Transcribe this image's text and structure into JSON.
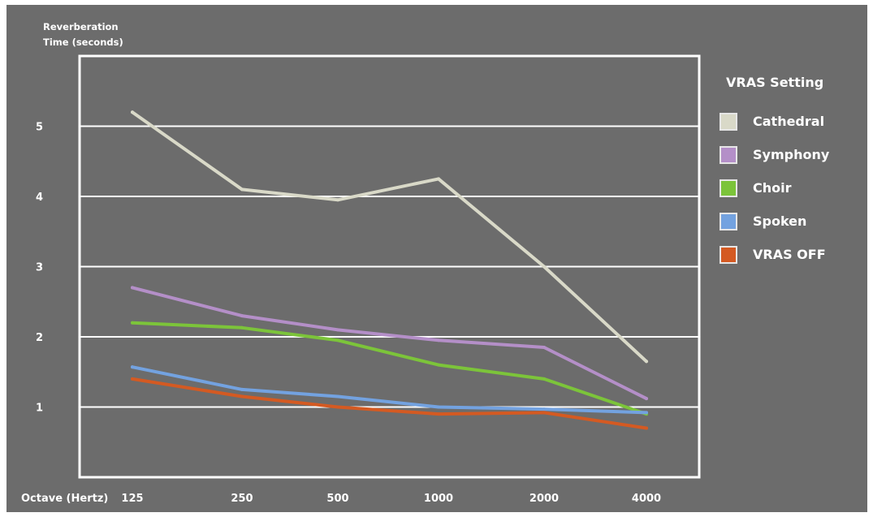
{
  "chart_data": {
    "type": "line",
    "ylabel_lines": [
      "Reverberation",
      "Time (seconds)"
    ],
    "xlabel": "Octave (Hertz)",
    "categories": [
      "125",
      "250",
      "500",
      "1000",
      "2000",
      "4000"
    ],
    "yticks": [
      "1",
      "2",
      "3",
      "4",
      "5"
    ],
    "ylim": [
      0,
      6
    ],
    "grid": true,
    "legend_title": "VRAS Setting",
    "legend_position": "right",
    "series": [
      {
        "name": "Cathedral",
        "color": "#d9d9c8",
        "values": [
          5.2,
          4.1,
          3.95,
          4.25,
          3.0,
          1.65
        ]
      },
      {
        "name": "Symphony",
        "color": "#b48fc8",
        "values": [
          2.7,
          2.3,
          2.1,
          1.95,
          1.85,
          1.12
        ]
      },
      {
        "name": "Choir",
        "color": "#7cc43a",
        "values": [
          2.2,
          2.13,
          1.95,
          1.6,
          1.4,
          0.9
        ]
      },
      {
        "name": "Spoken",
        "color": "#73a2e0",
        "values": [
          1.57,
          1.25,
          1.15,
          1.0,
          0.97,
          0.92
        ]
      },
      {
        "name": "VRAS OFF",
        "color": "#d45a22",
        "values": [
          1.4,
          1.15,
          1.0,
          0.9,
          0.92,
          0.7
        ]
      }
    ]
  }
}
